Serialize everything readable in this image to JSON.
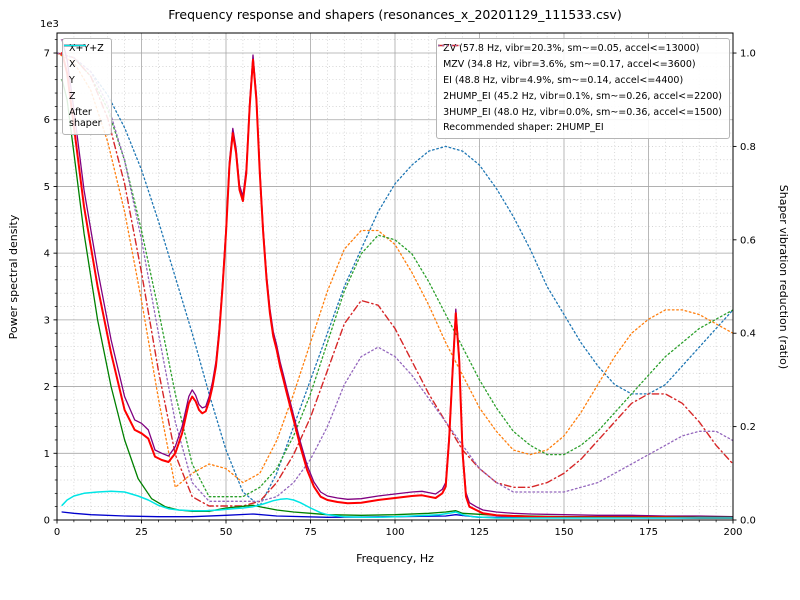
{
  "chart_data": {
    "type": "line",
    "title": "Frequency response and shapers (resonances_x_20201129_111533.csv)",
    "xlabel": "Frequency, Hz",
    "ylabel_left": "Power spectral density",
    "ylabel_right": "Shaper vibration reduction (ratio)",
    "offset_text": "1e3",
    "xlim": [
      0,
      200
    ],
    "xticks": [
      0,
      25,
      50,
      75,
      100,
      125,
      150,
      175,
      200
    ],
    "xtick_labels": [
      "0",
      "25",
      "50",
      "75",
      "100",
      "125",
      "150",
      "175",
      "200"
    ],
    "x_minor_step": 5,
    "ylim_left": [
      0,
      7.3
    ],
    "yticks_left": [
      0,
      1,
      2,
      3,
      4,
      5,
      6,
      7
    ],
    "ytick_labels_left": [
      "0",
      "1",
      "2",
      "3",
      "4",
      "5",
      "6",
      "7"
    ],
    "y_minor_step_left": 0.2,
    "ylim_right": [
      0,
      1.0429
    ],
    "yticks_right": [
      0.0,
      0.2,
      0.4,
      0.6,
      0.8,
      1.0
    ],
    "ytick_labels_right": [
      "0.0",
      "0.2",
      "0.4",
      "0.6",
      "0.8",
      "1.0"
    ],
    "grid": {
      "major": true,
      "minor": true
    },
    "recommended_label": "Recommended shaper: 2HUMP_EI",
    "psd_series": [
      {
        "label": "X+Y+Z",
        "legend_label": "X+Y+Z",
        "color": "#800080",
        "linestyle": "solid",
        "linewidth": 1.3,
        "zorder": 1,
        "axis": "left",
        "x": [
          1.5,
          3,
          5,
          8,
          12,
          16,
          20,
          23,
          25,
          27,
          29,
          31,
          33,
          35,
          37,
          39,
          40,
          41,
          42,
          43,
          44,
          45,
          46,
          47,
          48,
          49,
          50,
          51,
          52,
          53,
          54,
          55,
          56,
          57,
          58,
          59,
          60,
          61,
          62,
          63,
          64,
          65,
          66,
          67,
          68,
          70,
          72,
          74,
          76,
          78,
          80,
          83,
          86,
          90,
          95,
          100,
          105,
          108,
          110,
          112,
          114,
          115,
          116,
          117,
          118,
          119,
          120,
          121,
          122,
          124,
          126,
          130,
          135,
          140,
          150,
          160,
          170,
          180,
          190,
          200
        ],
        "y": [
          7.2,
          6.9,
          6.15,
          4.95,
          3.75,
          2.7,
          1.85,
          1.5,
          1.45,
          1.35,
          1.05,
          1.0,
          0.96,
          1.1,
          1.4,
          1.85,
          1.95,
          1.87,
          1.73,
          1.68,
          1.7,
          1.85,
          2.07,
          2.37,
          2.87,
          3.57,
          4.37,
          5.37,
          5.87,
          5.57,
          5.02,
          4.85,
          5.27,
          6.27,
          6.97,
          6.37,
          5.27,
          4.37,
          3.67,
          3.17,
          2.82,
          2.62,
          2.37,
          2.17,
          1.97,
          1.57,
          1.17,
          0.82,
          0.57,
          0.42,
          0.36,
          0.33,
          0.31,
          0.32,
          0.36,
          0.39,
          0.42,
          0.43,
          0.41,
          0.39,
          0.46,
          0.56,
          1.26,
          2.26,
          3.16,
          2.46,
          1.06,
          0.41,
          0.26,
          0.2,
          0.15,
          0.12,
          0.1,
          0.09,
          0.08,
          0.07,
          0.07,
          0.06,
          0.06,
          0.05
        ]
      },
      {
        "label": "X",
        "legend_label": "X",
        "color": "#ff0000",
        "linestyle": "solid",
        "linewidth": 2.0,
        "zorder": 4,
        "axis": "left",
        "x": [
          1.5,
          3,
          5,
          8,
          12,
          16,
          20,
          23,
          25,
          27,
          29,
          31,
          33,
          35,
          37,
          39,
          40,
          41,
          42,
          43,
          44,
          45,
          46,
          47,
          48,
          49,
          50,
          51,
          52,
          53,
          54,
          55,
          56,
          57,
          58,
          59,
          60,
          61,
          62,
          63,
          64,
          65,
          66,
          67,
          68,
          70,
          72,
          74,
          76,
          78,
          80,
          83,
          86,
          90,
          95,
          100,
          105,
          108,
          110,
          112,
          114,
          115,
          116,
          117,
          118,
          119,
          120,
          121,
          122,
          124,
          126,
          130,
          135,
          140,
          150,
          160,
          170,
          180,
          190,
          200
        ],
        "y": [
          7.0,
          6.7,
          5.9,
          4.7,
          3.5,
          2.5,
          1.65,
          1.35,
          1.3,
          1.22,
          0.95,
          0.9,
          0.87,
          1.0,
          1.3,
          1.75,
          1.85,
          1.78,
          1.65,
          1.6,
          1.63,
          1.78,
          2.0,
          2.3,
          2.8,
          3.5,
          4.3,
          5.3,
          5.8,
          5.5,
          4.95,
          4.78,
          5.2,
          6.2,
          6.9,
          6.3,
          5.2,
          4.3,
          3.6,
          3.1,
          2.75,
          2.55,
          2.3,
          2.1,
          1.9,
          1.5,
          1.1,
          0.75,
          0.5,
          0.35,
          0.3,
          0.27,
          0.25,
          0.26,
          0.3,
          0.33,
          0.36,
          0.37,
          0.35,
          0.33,
          0.4,
          0.5,
          1.2,
          2.2,
          3.1,
          2.4,
          1.0,
          0.35,
          0.2,
          0.15,
          0.1,
          0.07,
          0.06,
          0.05,
          0.04,
          0.04,
          0.04,
          0.04,
          0.03,
          0.03
        ]
      },
      {
        "label": "Y",
        "legend_label": "Y",
        "color": "#008000",
        "linestyle": "solid",
        "linewidth": 1.3,
        "zorder": 2,
        "axis": "left",
        "x": [
          1.5,
          3,
          5,
          8,
          12,
          16,
          20,
          24,
          28,
          32,
          36,
          40,
          45,
          50,
          54,
          58,
          60,
          65,
          70,
          75,
          80,
          90,
          100,
          110,
          115,
          118,
          120,
          130,
          140,
          150,
          160,
          170,
          180,
          190,
          200
        ],
        "y": [
          6.6,
          6.3,
          5.5,
          4.3,
          3.0,
          2.0,
          1.2,
          0.62,
          0.32,
          0.2,
          0.15,
          0.13,
          0.13,
          0.18,
          0.2,
          0.22,
          0.2,
          0.15,
          0.12,
          0.1,
          0.08,
          0.07,
          0.08,
          0.1,
          0.12,
          0.14,
          0.1,
          0.07,
          0.06,
          0.05,
          0.05,
          0.05,
          0.05,
          0.04,
          0.04
        ]
      },
      {
        "label": "Z",
        "legend_label": "Z",
        "color": "#0000cd",
        "linestyle": "solid",
        "linewidth": 1.3,
        "zorder": 3,
        "axis": "left",
        "x": [
          1.5,
          5,
          10,
          20,
          30,
          40,
          50,
          58,
          65,
          80,
          100,
          115,
          118,
          125,
          150,
          175,
          200
        ],
        "y": [
          0.12,
          0.1,
          0.08,
          0.06,
          0.05,
          0.05,
          0.07,
          0.09,
          0.06,
          0.04,
          0.05,
          0.06,
          0.08,
          0.04,
          0.04,
          0.03,
          0.03
        ]
      },
      {
        "label": "After shaper",
        "legend_label": "After\nshaper",
        "color": "#00e5e5",
        "linestyle": "solid",
        "linewidth": 1.5,
        "zorder": 5,
        "axis": "left",
        "x": [
          1.5,
          3,
          5,
          8,
          12,
          16,
          20,
          24,
          27,
          30,
          33,
          36,
          40,
          44,
          48,
          52,
          55,
          58,
          61,
          64,
          66,
          68,
          70,
          72,
          75,
          78,
          80,
          85,
          90,
          95,
          100,
          105,
          110,
          113,
          116,
          118,
          120,
          123,
          126,
          130,
          140,
          150,
          160,
          170,
          180,
          190,
          200
        ],
        "y": [
          0.22,
          0.3,
          0.36,
          0.4,
          0.42,
          0.43,
          0.42,
          0.36,
          0.3,
          0.22,
          0.17,
          0.15,
          0.14,
          0.14,
          0.15,
          0.17,
          0.18,
          0.2,
          0.24,
          0.29,
          0.31,
          0.32,
          0.3,
          0.26,
          0.18,
          0.11,
          0.08,
          0.05,
          0.04,
          0.04,
          0.05,
          0.06,
          0.07,
          0.08,
          0.1,
          0.12,
          0.08,
          0.05,
          0.04,
          0.03,
          0.03,
          0.03,
          0.03,
          0.03,
          0.03,
          0.03,
          0.03
        ]
      }
    ],
    "shaper_series": [
      {
        "label": "ZV (57.8 Hz, vibr=20.3%, sm~=0.05, accel<=13000)",
        "color": "#1f77b4",
        "linestyle": "dotted",
        "linewidth": 1.3,
        "axis": "right",
        "x": [
          0,
          5,
          10,
          15,
          20,
          25,
          30,
          35,
          40,
          45,
          50,
          55,
          60,
          65,
          70,
          75,
          80,
          85,
          90,
          95,
          100,
          105,
          110,
          115,
          120,
          125,
          130,
          135,
          140,
          145,
          150,
          155,
          160,
          165,
          170,
          175,
          180,
          185,
          190,
          195,
          200
        ],
        "y": [
          1.0,
          0.99,
          0.96,
          0.91,
          0.84,
          0.75,
          0.64,
          0.52,
          0.4,
          0.27,
          0.15,
          0.06,
          0.03,
          0.1,
          0.2,
          0.3,
          0.4,
          0.5,
          0.58,
          0.66,
          0.72,
          0.76,
          0.79,
          0.8,
          0.79,
          0.76,
          0.71,
          0.65,
          0.58,
          0.5,
          0.44,
          0.38,
          0.33,
          0.29,
          0.27,
          0.27,
          0.29,
          0.33,
          0.37,
          0.41,
          0.45
        ]
      },
      {
        "label": "MZV (34.8 Hz, vibr=3.6%, sm~=0.17, accel<=3600)",
        "color": "#ff7f0e",
        "linestyle": "dotted",
        "linewidth": 1.3,
        "axis": "right",
        "x": [
          0,
          5,
          10,
          15,
          20,
          25,
          30,
          35,
          40,
          45,
          50,
          55,
          60,
          65,
          70,
          75,
          80,
          85,
          90,
          95,
          100,
          105,
          110,
          115,
          120,
          125,
          130,
          135,
          140,
          145,
          150,
          155,
          160,
          165,
          170,
          175,
          180,
          185,
          190,
          195,
          200
        ],
        "y": [
          1.0,
          0.98,
          0.92,
          0.81,
          0.66,
          0.47,
          0.26,
          0.07,
          0.1,
          0.12,
          0.11,
          0.08,
          0.1,
          0.17,
          0.27,
          0.38,
          0.49,
          0.58,
          0.62,
          0.62,
          0.59,
          0.53,
          0.46,
          0.38,
          0.31,
          0.24,
          0.19,
          0.15,
          0.14,
          0.15,
          0.18,
          0.23,
          0.29,
          0.35,
          0.4,
          0.43,
          0.45,
          0.45,
          0.44,
          0.42,
          0.4
        ]
      },
      {
        "label": "EI (48.8 Hz, vibr=4.9%, sm~=0.14, accel<=4400)",
        "color": "#2ca02c",
        "linestyle": "dotted",
        "linewidth": 1.3,
        "axis": "right",
        "x": [
          0,
          5,
          10,
          15,
          20,
          25,
          30,
          35,
          40,
          45,
          50,
          55,
          60,
          65,
          70,
          75,
          80,
          85,
          90,
          95,
          100,
          105,
          110,
          115,
          120,
          125,
          130,
          135,
          140,
          145,
          150,
          155,
          160,
          165,
          170,
          175,
          180,
          185,
          190,
          195,
          200
        ],
        "y": [
          1.0,
          0.99,
          0.95,
          0.88,
          0.77,
          0.62,
          0.45,
          0.27,
          0.12,
          0.05,
          0.05,
          0.05,
          0.07,
          0.11,
          0.18,
          0.27,
          0.38,
          0.49,
          0.57,
          0.61,
          0.6,
          0.57,
          0.51,
          0.44,
          0.37,
          0.3,
          0.24,
          0.19,
          0.16,
          0.14,
          0.14,
          0.16,
          0.19,
          0.23,
          0.27,
          0.31,
          0.35,
          0.38,
          0.41,
          0.43,
          0.45
        ]
      },
      {
        "label": "2HUMP_EI (45.2 Hz, vibr=0.1%, sm~=0.26, accel<=2200)",
        "color": "#d62728",
        "linestyle": "dashdot",
        "linewidth": 1.4,
        "axis": "right",
        "x": [
          0,
          5,
          10,
          15,
          20,
          25,
          30,
          35,
          40,
          45,
          50,
          55,
          60,
          65,
          70,
          75,
          80,
          85,
          90,
          95,
          100,
          105,
          110,
          115,
          120,
          125,
          130,
          135,
          140,
          145,
          150,
          155,
          160,
          165,
          170,
          175,
          180,
          185,
          190,
          195,
          200
        ],
        "y": [
          1.0,
          0.99,
          0.95,
          0.86,
          0.72,
          0.53,
          0.32,
          0.14,
          0.05,
          0.03,
          0.03,
          0.03,
          0.04,
          0.08,
          0.14,
          0.22,
          0.32,
          0.42,
          0.47,
          0.46,
          0.41,
          0.34,
          0.27,
          0.21,
          0.15,
          0.11,
          0.08,
          0.07,
          0.07,
          0.08,
          0.1,
          0.13,
          0.17,
          0.21,
          0.25,
          0.27,
          0.27,
          0.25,
          0.21,
          0.16,
          0.12
        ]
      },
      {
        "label": "3HUMP_EI (48.0 Hz, vibr=0.0%, sm~=0.36, accel<=1500)",
        "color": "#9467bd",
        "linestyle": "dotted",
        "linewidth": 1.3,
        "axis": "right",
        "x": [
          0,
          5,
          10,
          15,
          20,
          25,
          30,
          35,
          40,
          45,
          50,
          55,
          60,
          65,
          70,
          75,
          80,
          85,
          90,
          95,
          100,
          105,
          110,
          115,
          120,
          125,
          130,
          135,
          140,
          145,
          150,
          155,
          160,
          165,
          170,
          175,
          180,
          185,
          190,
          195,
          200
        ],
        "y": [
          1.0,
          0.99,
          0.96,
          0.89,
          0.77,
          0.6,
          0.4,
          0.21,
          0.08,
          0.04,
          0.04,
          0.04,
          0.04,
          0.05,
          0.08,
          0.13,
          0.2,
          0.29,
          0.35,
          0.37,
          0.35,
          0.31,
          0.26,
          0.21,
          0.16,
          0.11,
          0.08,
          0.06,
          0.06,
          0.06,
          0.06,
          0.07,
          0.08,
          0.1,
          0.12,
          0.14,
          0.16,
          0.18,
          0.19,
          0.19,
          0.17
        ]
      }
    ]
  }
}
